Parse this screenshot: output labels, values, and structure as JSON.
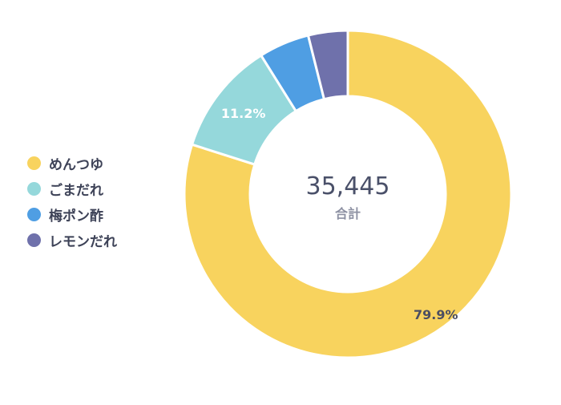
{
  "chart_data": {
    "type": "pie",
    "variant": "donut",
    "categories": [
      "めんつゆ",
      "ごまだれ",
      "梅ポン酢",
      "レモンだれ"
    ],
    "values": [
      79.9,
      11.2,
      5.0,
      3.9
    ],
    "value_unit": "%",
    "data_labels": [
      "79.9%",
      "11.2%",
      "",
      ""
    ],
    "colors": [
      "#F8D35E",
      "#95D8DB",
      "#4F9EE3",
      "#6F71AB"
    ],
    "center": {
      "value": "35,445",
      "label": "合計"
    },
    "legend": {
      "placement": "left"
    }
  }
}
